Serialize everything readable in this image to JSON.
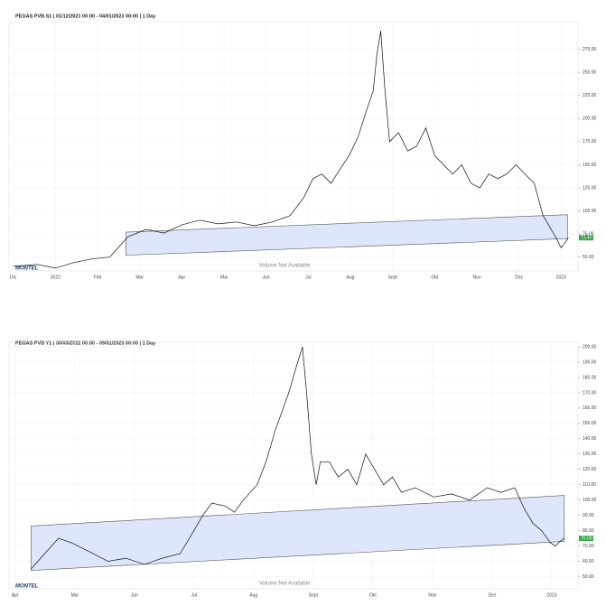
{
  "chart_data": [
    {
      "type": "line",
      "title": "PEGAS PVB S1 | 01/12/2021 00:00 - 04/01/2023 00:00 | 1 Day",
      "note": "Volume Not Available",
      "brand": "MONTEL",
      "last_label": "71.47",
      "xlim": [
        -0.1,
        13.4
      ],
      "ylim": [
        35,
        305
      ],
      "xticks": [
        {
          "value": 0,
          "label": "Dic"
        },
        {
          "value": 1,
          "label": "2022"
        },
        {
          "value": 2,
          "label": "Feb"
        },
        {
          "value": 3,
          "label": "Mar"
        },
        {
          "value": 4,
          "label": "Apr"
        },
        {
          "value": 5,
          "label": "Mai"
        },
        {
          "value": 6,
          "label": "Jun"
        },
        {
          "value": 7,
          "label": "Jul"
        },
        {
          "value": 8,
          "label": "Aug"
        },
        {
          "value": 9,
          "label": "Sept"
        },
        {
          "value": 10,
          "label": "Okt"
        },
        {
          "value": 11,
          "label": "Nov"
        },
        {
          "value": 12,
          "label": "Dez"
        },
        {
          "value": 13,
          "label": "2023"
        }
      ],
      "yticks": [
        {
          "value": 50,
          "label": "50.00"
        },
        {
          "value": 75,
          "label": "75.00"
        },
        {
          "value": 100,
          "label": "100.00"
        },
        {
          "value": 125,
          "label": "125.00"
        },
        {
          "value": 150,
          "label": "150.00"
        },
        {
          "value": 175,
          "label": "175.00"
        },
        {
          "value": 200,
          "label": "200.00"
        },
        {
          "value": 225,
          "label": "225.00"
        },
        {
          "value": 250,
          "label": "250.00"
        },
        {
          "value": 275,
          "label": "275.00"
        }
      ],
      "grid": true,
      "channel": {
        "x": [
          2.67,
          13.15
        ],
        "upper": [
          77,
          96
        ],
        "lower": [
          52,
          70
        ],
        "color": "#dde6fb"
      },
      "series": [
        {
          "name": "PEGAS PVB S1",
          "color": "#111111",
          "x": [
            0,
            0.58,
            1.0,
            1.43,
            1.86,
            2.29,
            2.72,
            3.15,
            3.58,
            4.0,
            4.43,
            4.86,
            5.29,
            5.72,
            6.15,
            6.57,
            6.9,
            7.11,
            7.32,
            7.54,
            7.75,
            7.97,
            8.18,
            8.39,
            8.54,
            8.63,
            8.72,
            8.82,
            8.93,
            9.14,
            9.36,
            9.57,
            9.79,
            10.0,
            10.21,
            10.43,
            10.64,
            10.86,
            11.07,
            11.28,
            11.5,
            11.71,
            11.93,
            12.14,
            12.36,
            12.57,
            12.79,
            12.89,
            13.0,
            13.1,
            13.17
          ],
          "values": [
            40,
            42,
            38,
            44,
            48,
            50,
            72,
            80,
            76,
            85,
            90,
            86,
            88,
            84,
            88,
            95,
            115,
            135,
            140,
            130,
            145,
            160,
            180,
            210,
            230,
            270,
            295,
            230,
            175,
            185,
            165,
            170,
            190,
            160,
            150,
            140,
            150,
            130,
            125,
            140,
            135,
            140,
            150,
            140,
            130,
            95,
            78,
            70,
            60,
            66,
            71
          ]
        }
      ]
    },
    {
      "type": "line",
      "title": "PEGAS PVB Y1 | 30/03/2022 00:00 - 09/01/2023 00:00 | 1 Day",
      "note": "Volume Not Available",
      "brand": "MONTEL",
      "last_label": "75.00",
      "xlim": [
        -0.1,
        9.44
      ],
      "ylim": [
        42,
        203
      ],
      "xticks": [
        {
          "value": 0,
          "label": "Apr"
        },
        {
          "value": 1,
          "label": "Mai"
        },
        {
          "value": 2,
          "label": "Jun"
        },
        {
          "value": 3,
          "label": "Jul"
        },
        {
          "value": 4,
          "label": "Aug"
        },
        {
          "value": 5,
          "label": "Sept"
        },
        {
          "value": 6,
          "label": "Okt"
        },
        {
          "value": 7,
          "label": "Nov"
        },
        {
          "value": 8,
          "label": "Dez"
        },
        {
          "value": 9,
          "label": "2023"
        }
      ],
      "yticks": [
        {
          "value": 50,
          "label": "50.00"
        },
        {
          "value": 60,
          "label": "60.00"
        },
        {
          "value": 70,
          "label": "70.00"
        },
        {
          "value": 80,
          "label": "80.00"
        },
        {
          "value": 90,
          "label": "90.00"
        },
        {
          "value": 100,
          "label": "100.00"
        },
        {
          "value": 110,
          "label": "110.00"
        },
        {
          "value": 120,
          "label": "120.00"
        },
        {
          "value": 130,
          "label": "130.00"
        },
        {
          "value": 140,
          "label": "140.00"
        },
        {
          "value": 150,
          "label": "150.00"
        },
        {
          "value": 160,
          "label": "160.00"
        },
        {
          "value": 170,
          "label": "170.00"
        },
        {
          "value": 180,
          "label": "180.00"
        },
        {
          "value": 190,
          "label": "190.00"
        },
        {
          "value": 200,
          "label": "200.00"
        }
      ],
      "grid": true,
      "channel": {
        "x": [
          0.27,
          9.21
        ],
        "upper": [
          83,
          103
        ],
        "lower": [
          54,
          73
        ],
        "color": "#dde6fb"
      },
      "series": [
        {
          "name": "PEGAS PVB Y1",
          "color": "#111111",
          "x": [
            0.27,
            0.5,
            0.73,
            0.95,
            1.26,
            1.56,
            1.86,
            2.17,
            2.47,
            2.77,
            3.0,
            3.15,
            3.3,
            3.53,
            3.68,
            3.83,
            4.06,
            4.21,
            4.36,
            4.59,
            4.74,
            4.82,
            4.89,
            4.97,
            5.05,
            5.12,
            5.27,
            5.42,
            5.58,
            5.73,
            5.88,
            6.03,
            6.18,
            6.33,
            6.48,
            6.71,
            7.02,
            7.32,
            7.62,
            7.92,
            8.15,
            8.38,
            8.53,
            8.68,
            8.83,
            8.98,
            9.06,
            9.14,
            9.21
          ],
          "values": [
            55,
            65,
            75,
            72,
            66,
            60,
            62,
            58,
            62,
            65,
            80,
            90,
            98,
            96,
            92,
            100,
            110,
            125,
            145,
            170,
            190,
            200,
            170,
            130,
            110,
            125,
            125,
            115,
            120,
            110,
            130,
            120,
            110,
            115,
            105,
            108,
            102,
            104,
            100,
            108,
            105,
            108,
            95,
            85,
            80,
            72,
            70,
            73,
            75
          ]
        }
      ]
    }
  ]
}
